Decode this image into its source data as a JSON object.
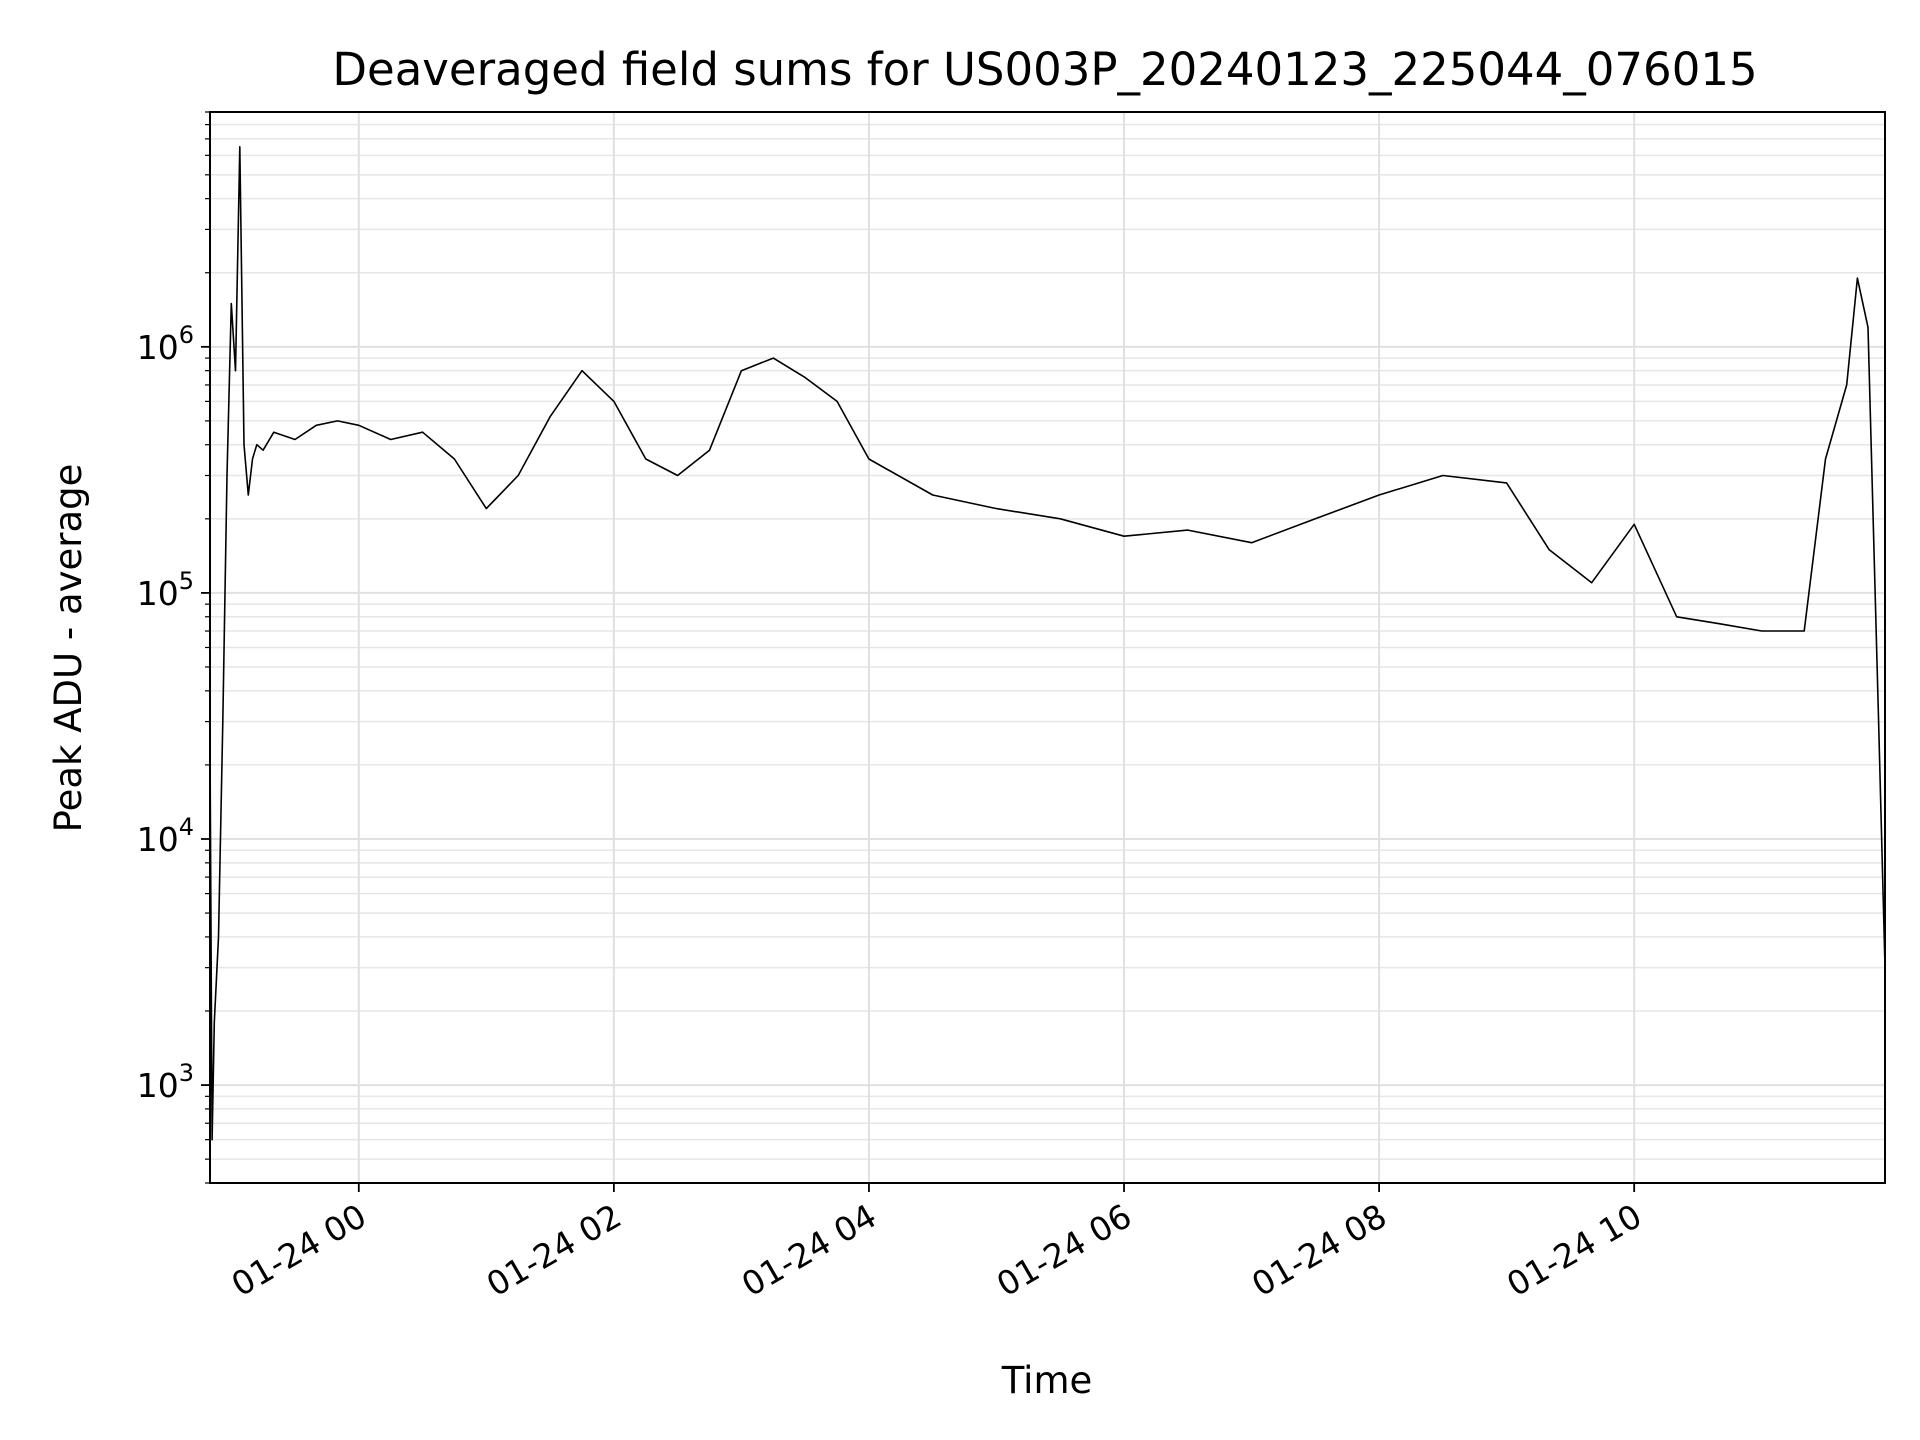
{
  "chart_data": {
    "type": "line",
    "title": "Deaveraged field sums for US003P_20240123_225044_076015",
    "xlabel": "Time",
    "ylabel": "Peak ADU - average",
    "yscale": "log",
    "ylim": [
      400,
      9000000
    ],
    "xlim": [
      "2024-01-23 22:50",
      "2024-01-24 11:58"
    ],
    "x_ticks": [
      "01-24 00",
      "01-24 02",
      "01-24 04",
      "01-24 06",
      "01-24 08",
      "01-24 10"
    ],
    "y_ticks": [
      {
        "base": "10",
        "exp": "3",
        "value": 1000
      },
      {
        "base": "10",
        "exp": "4",
        "value": 10000
      },
      {
        "base": "10",
        "exp": "5",
        "value": 100000
      },
      {
        "base": "10",
        "exp": "6",
        "value": 1000000
      }
    ],
    "grid": true,
    "line_color": "#000000",
    "series": [
      {
        "x": [
          "2024-01-23 22:50",
          "2024-01-23 22:51",
          "2024-01-23 22:52",
          "2024-01-23 22:54",
          "2024-01-23 22:56",
          "2024-01-23 22:58",
          "2024-01-23 23:00",
          "2024-01-23 23:02",
          "2024-01-23 23:04",
          "2024-01-23 23:06",
          "2024-01-23 23:08",
          "2024-01-23 23:10",
          "2024-01-23 23:12",
          "2024-01-23 23:15",
          "2024-01-23 23:20",
          "2024-01-23 23:30",
          "2024-01-23 23:40",
          "2024-01-23 23:50",
          "2024-01-24 00:00",
          "2024-01-24 00:15",
          "2024-01-24 00:30",
          "2024-01-24 00:45",
          "2024-01-24 01:00",
          "2024-01-24 01:15",
          "2024-01-24 01:30",
          "2024-01-24 01:45",
          "2024-01-24 02:00",
          "2024-01-24 02:15",
          "2024-01-24 02:30",
          "2024-01-24 02:45",
          "2024-01-24 03:00",
          "2024-01-24 03:15",
          "2024-01-24 03:30",
          "2024-01-24 03:45",
          "2024-01-24 04:00",
          "2024-01-24 04:30",
          "2024-01-24 05:00",
          "2024-01-24 05:30",
          "2024-01-24 06:00",
          "2024-01-24 06:30",
          "2024-01-24 07:00",
          "2024-01-24 07:30",
          "2024-01-24 08:00",
          "2024-01-24 08:30",
          "2024-01-24 09:00",
          "2024-01-24 09:20",
          "2024-01-24 09:40",
          "2024-01-24 10:00",
          "2024-01-24 10:20",
          "2024-01-24 10:40",
          "2024-01-24 11:00",
          "2024-01-24 11:20",
          "2024-01-24 11:30",
          "2024-01-24 11:40",
          "2024-01-24 11:45",
          "2024-01-24 11:50",
          "2024-01-24 11:55",
          "2024-01-24 11:58"
        ],
        "y": [
          25000,
          600,
          1800,
          4000,
          30000,
          300000,
          1500000,
          800000,
          6500000,
          400000,
          250000,
          350000,
          400000,
          380000,
          450000,
          420000,
          480000,
          500000,
          480000,
          420000,
          450000,
          350000,
          220000,
          300000,
          520000,
          800000,
          600000,
          350000,
          300000,
          380000,
          800000,
          900000,
          750000,
          600000,
          350000,
          250000,
          220000,
          200000,
          170000,
          180000,
          160000,
          200000,
          250000,
          300000,
          280000,
          150000,
          110000,
          190000,
          80000,
          75000,
          70000,
          70000,
          350000,
          700000,
          1900000,
          1200000,
          30000,
          3000
        ]
      }
    ]
  }
}
